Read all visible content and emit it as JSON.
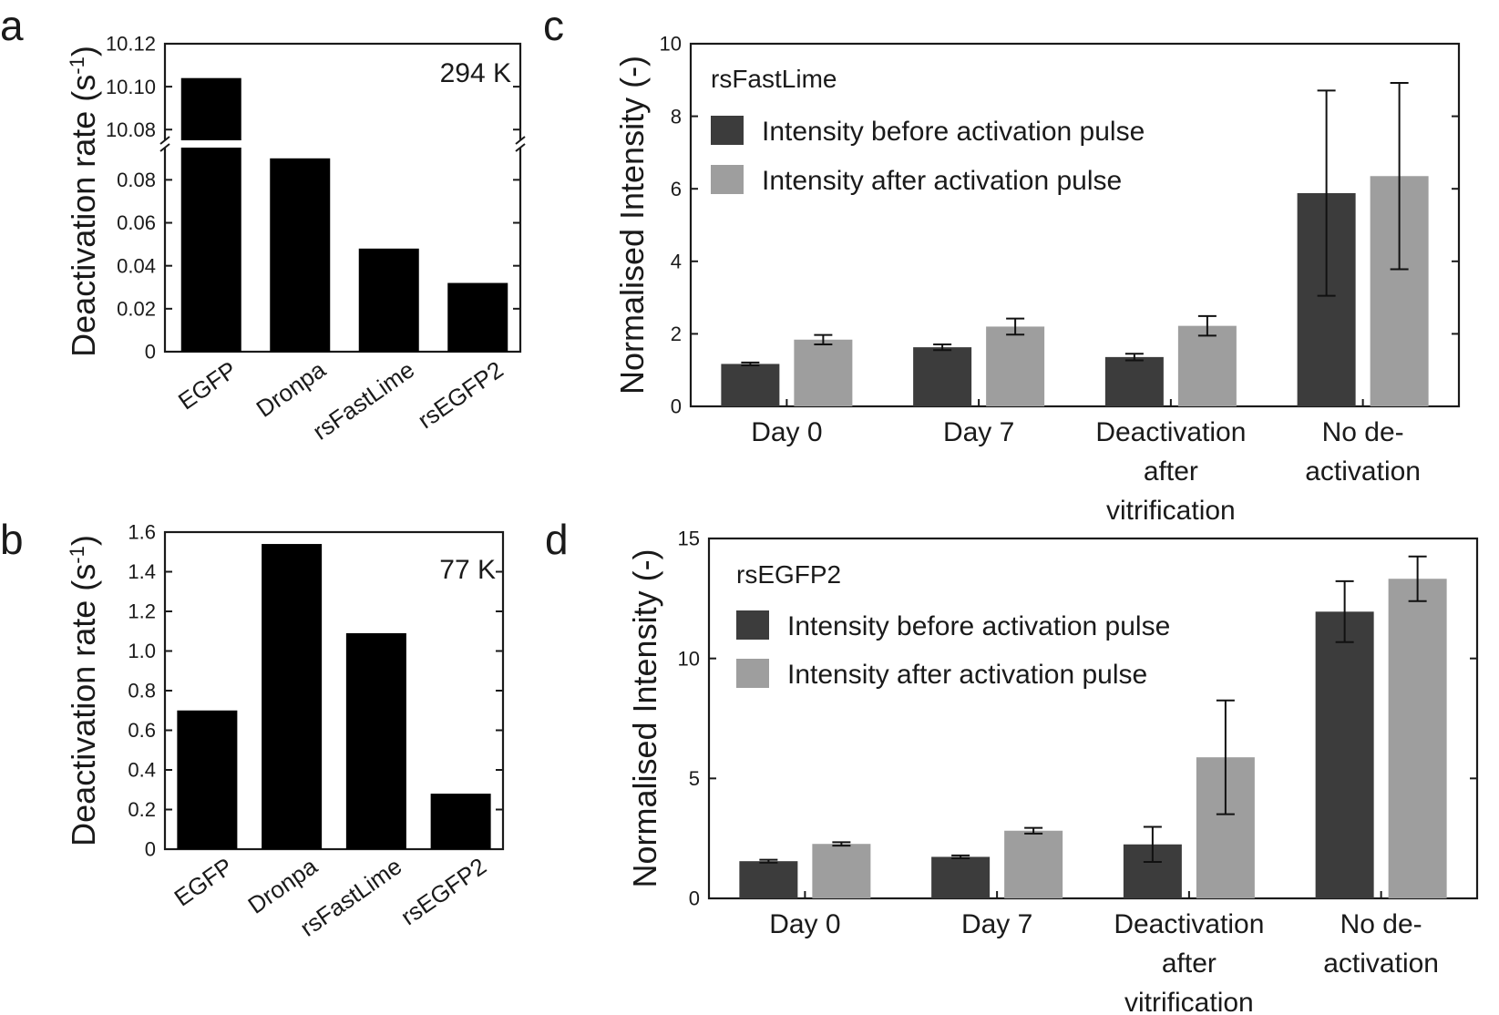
{
  "panel_labels": {
    "a": "a",
    "b": "b",
    "c": "c",
    "d": "d"
  },
  "chart_data": [
    {
      "id": "a",
      "type": "bar",
      "ylabel": "Deactivation rate (s",
      "ylabel_sup": "-1",
      "ylabel_close": ")",
      "annotation": "294 K",
      "categories": [
        "EGFP",
        "Dronpa",
        "rsFastLime",
        "rsEGFP2"
      ],
      "values": [
        10.104,
        0.09,
        0.048,
        0.032
      ],
      "broken_axis": true,
      "ylim_lower": [
        0,
        0.095
      ],
      "ylim_upper": [
        10.075,
        10.12
      ],
      "yticks_lower": [
        "0",
        "0.02",
        "0.04",
        "0.06",
        "0.08"
      ],
      "yticks_upper": [
        "10.08",
        "10.10",
        "10.12"
      ],
      "bar_color": "#000000",
      "grid": false
    },
    {
      "id": "b",
      "type": "bar",
      "ylabel": "Deactivation rate (s",
      "ylabel_sup": "-1",
      "ylabel_close": ")",
      "annotation": "77 K",
      "categories": [
        "EGFP",
        "Dronpa",
        "rsFastLime",
        "rsEGFP2"
      ],
      "values": [
        0.7,
        1.54,
        1.09,
        0.28
      ],
      "ylim": [
        0,
        1.6
      ],
      "yticks": [
        "0",
        "0.2",
        "0.4",
        "0.6",
        "0.8",
        "1.0",
        "1.2",
        "1.4",
        "1.6"
      ],
      "bar_color": "#000000",
      "grid": false
    },
    {
      "id": "c",
      "type": "bar",
      "ylabel": "Normalised Intensity (-)",
      "annotation": "rsFastLime",
      "categories": [
        "Day 0",
        "Day 7",
        "Deactivation after vitrification",
        "No de-activation"
      ],
      "category_lines": [
        [
          "Day 0"
        ],
        [
          "Day 7"
        ],
        [
          "Deactivation",
          "after",
          "vitrification"
        ],
        [
          "No de-",
          "activation"
        ]
      ],
      "series": [
        {
          "name": "Intensity before activation pulse",
          "color": "#3c3c3c",
          "values": [
            1.17,
            1.63,
            1.36,
            5.88
          ],
          "errors": [
            0.04,
            0.08,
            0.09,
            2.83
          ]
        },
        {
          "name": "Intensity after activation pulse",
          "color": "#9e9e9e",
          "values": [
            1.84,
            2.2,
            2.22,
            6.35
          ],
          "errors": [
            0.13,
            0.22,
            0.27,
            2.57
          ]
        }
      ],
      "ylim": [
        0,
        10
      ],
      "yticks": [
        "0",
        "2",
        "4",
        "6",
        "8",
        "10"
      ],
      "legend": "top-left",
      "grid": false
    },
    {
      "id": "d",
      "type": "bar",
      "ylabel": "Normalised Intensity (-)",
      "annotation": "rsEGFP2",
      "categories": [
        "Day 0",
        "Day 7",
        "Deactivation after vitrification",
        "No de-activation"
      ],
      "category_lines": [
        [
          "Day 0"
        ],
        [
          "Day 7"
        ],
        [
          "Deactivation",
          "after",
          "vitrification"
        ],
        [
          "No de-",
          "activation"
        ]
      ],
      "series": [
        {
          "name": "Intensity before activation pulse",
          "color": "#3c3c3c",
          "values": [
            1.55,
            1.73,
            2.25,
            11.95
          ],
          "errors": [
            0.06,
            0.06,
            0.73,
            1.27
          ]
        },
        {
          "name": "Intensity after activation pulse",
          "color": "#9e9e9e",
          "values": [
            2.27,
            2.82,
            5.88,
            13.32
          ],
          "errors": [
            0.07,
            0.12,
            2.37,
            0.93
          ]
        }
      ],
      "ylim": [
        0,
        15
      ],
      "yticks": [
        "0",
        "5",
        "10",
        "15"
      ],
      "legend": "top-left",
      "grid": false
    }
  ]
}
